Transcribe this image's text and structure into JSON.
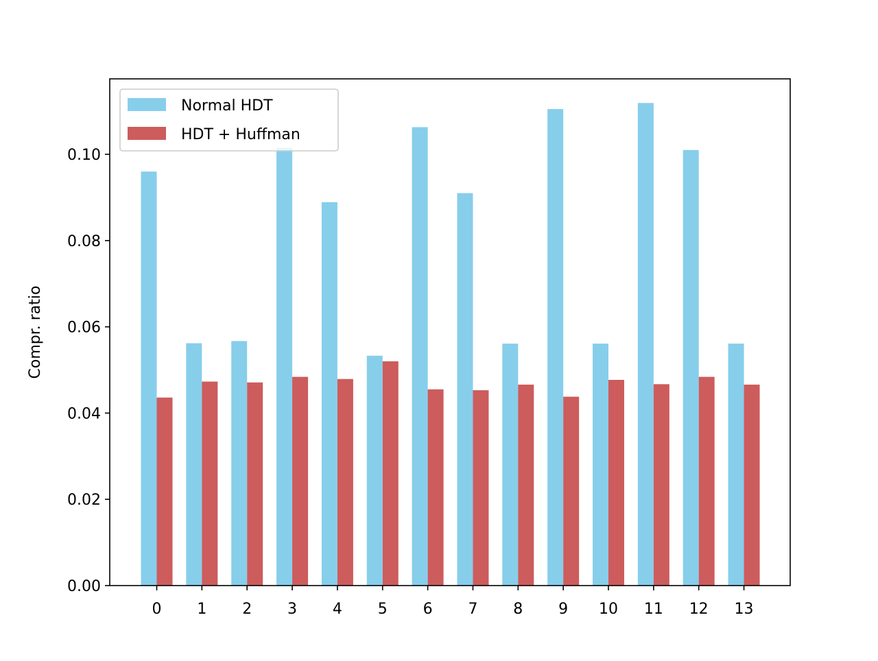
{
  "chart_data": {
    "type": "bar",
    "title": "",
    "xlabel": "",
    "ylabel": "Compr. ratio",
    "categories": [
      "0",
      "1",
      "2",
      "3",
      "4",
      "5",
      "6",
      "7",
      "8",
      "9",
      "10",
      "11",
      "12",
      "13"
    ],
    "series": [
      {
        "name": "Normal HDT",
        "color": "#87ceeb",
        "values": [
          0.096,
          0.0562,
          0.0567,
          0.1015,
          0.0889,
          0.0533,
          0.1063,
          0.091,
          0.0561,
          0.1105,
          0.0561,
          0.1119,
          0.101,
          0.0561
        ]
      },
      {
        "name": "HDT + Huffman",
        "color": "#cd5c5c",
        "values": [
          0.0436,
          0.0473,
          0.0471,
          0.0484,
          0.0479,
          0.052,
          0.0455,
          0.0453,
          0.0466,
          0.0438,
          0.0477,
          0.0467,
          0.0484,
          0.0466
        ]
      }
    ],
    "ylim": [
      0,
      0.1175
    ],
    "yticks": [
      0.0,
      0.02,
      0.04,
      0.06,
      0.08,
      0.1
    ],
    "ytick_labels": [
      "0.00",
      "0.02",
      "0.04",
      "0.06",
      "0.08",
      "0.10"
    ],
    "grid": false,
    "legend": "top-left"
  }
}
